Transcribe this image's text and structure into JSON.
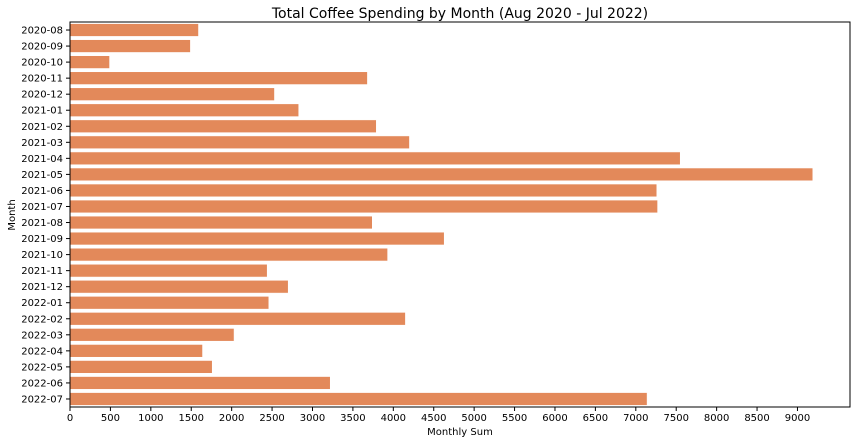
{
  "chart_data": {
    "type": "bar",
    "orientation": "horizontal",
    "title": "Total Coffee Spending by Month (Aug 2020 - Jul 2022)",
    "xlabel": "Monthly Sum",
    "ylabel": "Month",
    "categories": [
      "2020-08",
      "2020-09",
      "2020-10",
      "2020-11",
      "2020-12",
      "2021-01",
      "2021-02",
      "2021-03",
      "2021-04",
      "2021-05",
      "2021-06",
      "2021-07",
      "2021-08",
      "2021-09",
      "2021-10",
      "2021-11",
      "2021-12",
      "2022-01",
      "2022-02",
      "2022-03",
      "2022-04",
      "2022-05",
      "2022-06",
      "2022-07"
    ],
    "values": [
      1590,
      1490,
      490,
      3680,
      2530,
      2830,
      3790,
      4200,
      7550,
      9190,
      7260,
      7270,
      3740,
      4630,
      3930,
      2440,
      2700,
      2460,
      4150,
      2030,
      1640,
      1760,
      3220,
      7140
    ],
    "xticks": [
      0,
      500,
      1000,
      1500,
      2000,
      2500,
      3000,
      3500,
      4000,
      4500,
      5000,
      5500,
      6000,
      6500,
      7000,
      7500,
      8000,
      8500,
      9000
    ],
    "xlim": [
      0,
      9650
    ],
    "grid": false,
    "bar_color": "#e3895a",
    "bar_edge_color": "#ffffff"
  }
}
